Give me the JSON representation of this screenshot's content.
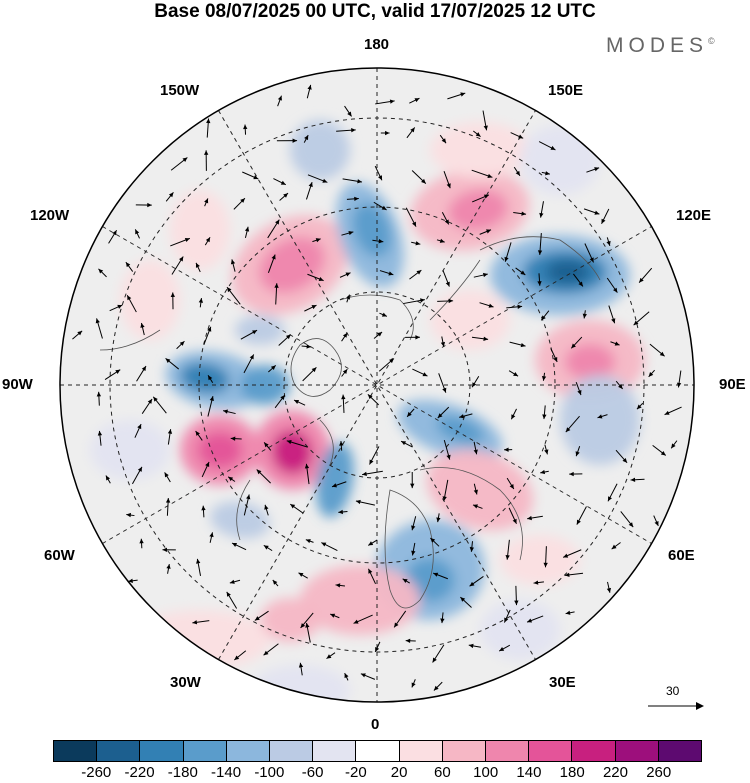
{
  "title": "Base 08/07/2025 00 UTC, valid 17/07/2025 12 UTC",
  "brand": "MODES",
  "brand_mark": "©",
  "longitude_labels": {
    "lon_180": "180",
    "lon_150w": "150W",
    "lon_150e": "150E",
    "lon_120w": "120W",
    "lon_120e": "120E",
    "lon_90w": "90W",
    "lon_90e": "90E",
    "lon_60w": "60W",
    "lon_60e": "60E",
    "lon_30w": "30W",
    "lon_30e": "30E",
    "lon_0": "0"
  },
  "reference_vector": {
    "value": "30"
  },
  "colorbar": {
    "colors": [
      "#0b3a5c",
      "#1c5f8f",
      "#3280b4",
      "#5a9ccb",
      "#8cb7dd",
      "#bbcbe4",
      "#e3e4f1",
      "#ffffff",
      "#fbdfe2",
      "#f6b7c5",
      "#ef86ad",
      "#e45499",
      "#c8207f",
      "#9d0f7c",
      "#5d0a70"
    ],
    "ticks": [
      "-260",
      "-220",
      "-180",
      "-140",
      "-100",
      "-60",
      "-20",
      "20",
      "60",
      "100",
      "140",
      "180",
      "220",
      "260"
    ]
  },
  "colors": {
    "neutral_fill": "#eeeeee",
    "gridline": "#222222",
    "coastline": "#555555"
  }
}
